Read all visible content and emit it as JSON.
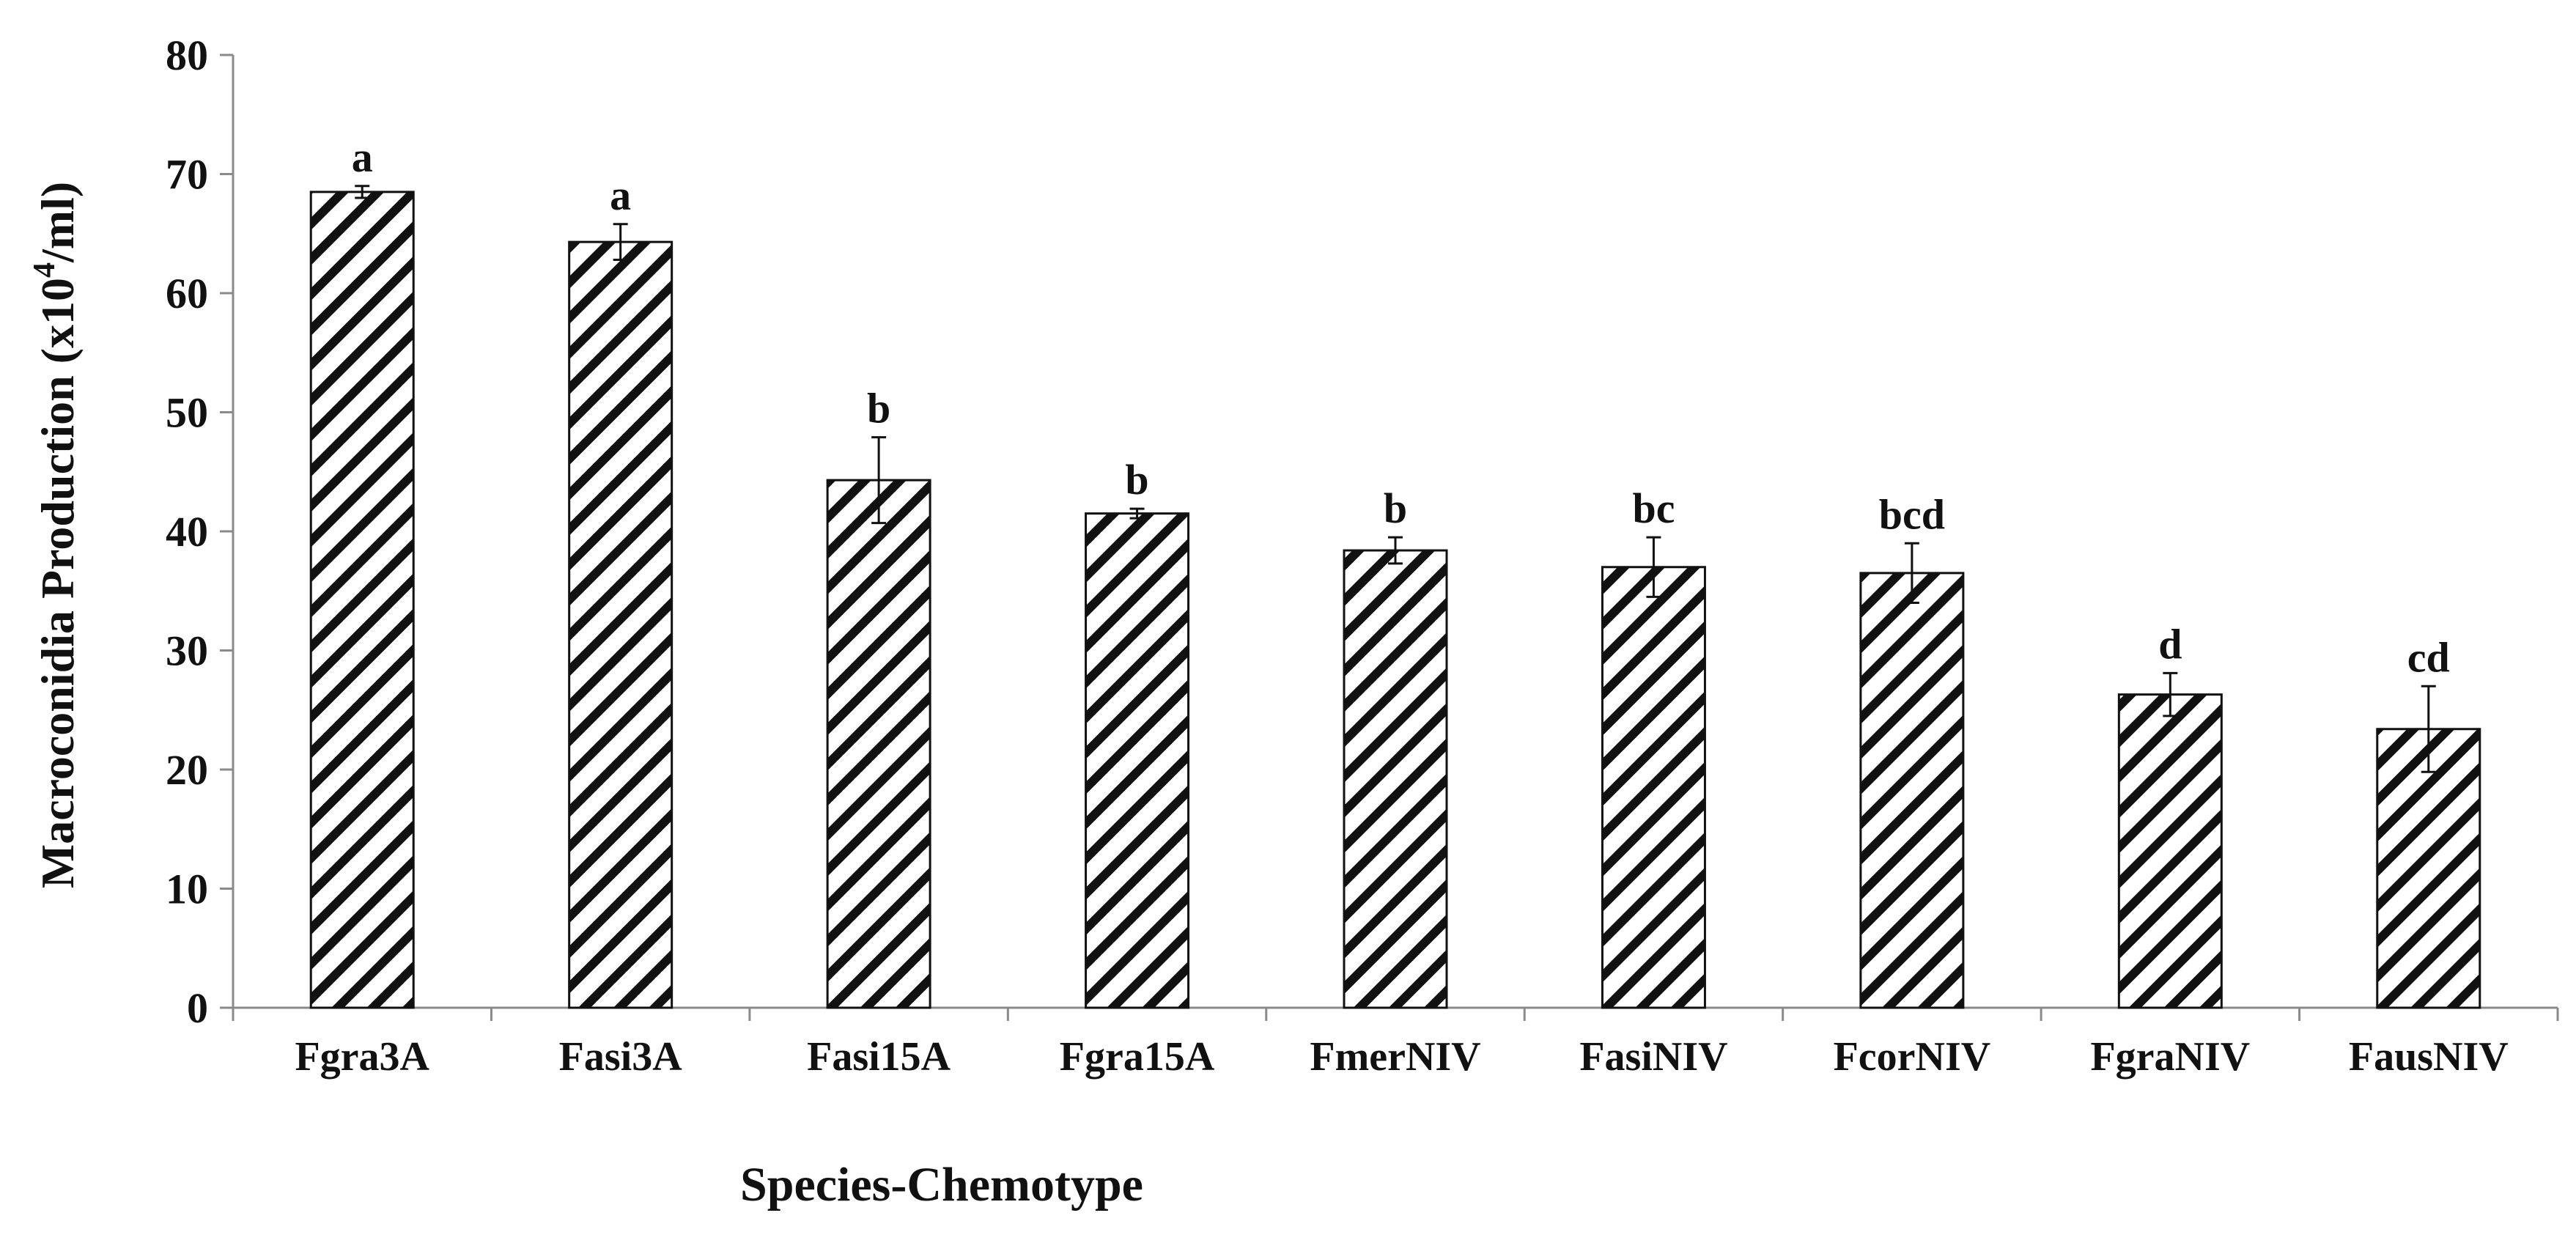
{
  "chart_data": {
    "type": "bar",
    "title": "",
    "xlabel": "Species-Chemotype",
    "ylabel_main": "Macroconidia Production (x10",
    "ylabel_sup": "4",
    "ylabel_tail": "/ml)",
    "ylim": [
      0,
      80
    ],
    "yticks": [
      0,
      10,
      20,
      30,
      40,
      50,
      60,
      70,
      80
    ],
    "grid": false,
    "legend": "none",
    "bar_pattern": "diagonal-hatch",
    "colors": {
      "bar_stroke": "#111111",
      "hatch": "#111111",
      "bar_fill": "#ffffff",
      "axis": "#8a8a8a",
      "text": "#111111"
    },
    "categories": [
      "Fgra3A",
      "Fasi3A",
      "Fasi15A",
      "Fgra15A",
      "FmerNIV",
      "FasiNIV",
      "FcorNIV",
      "FgraNIV",
      "FausNIV"
    ],
    "values": [
      68.5,
      64.3,
      44.3,
      41.5,
      38.4,
      37.0,
      36.5,
      26.3,
      23.4
    ],
    "errors": [
      0.5,
      1.5,
      3.6,
      0.4,
      1.1,
      2.5,
      2.5,
      1.8,
      3.6
    ],
    "significance": [
      "a",
      "a",
      "b",
      "b",
      "b",
      "bc",
      "bcd",
      "d",
      "cd"
    ]
  }
}
